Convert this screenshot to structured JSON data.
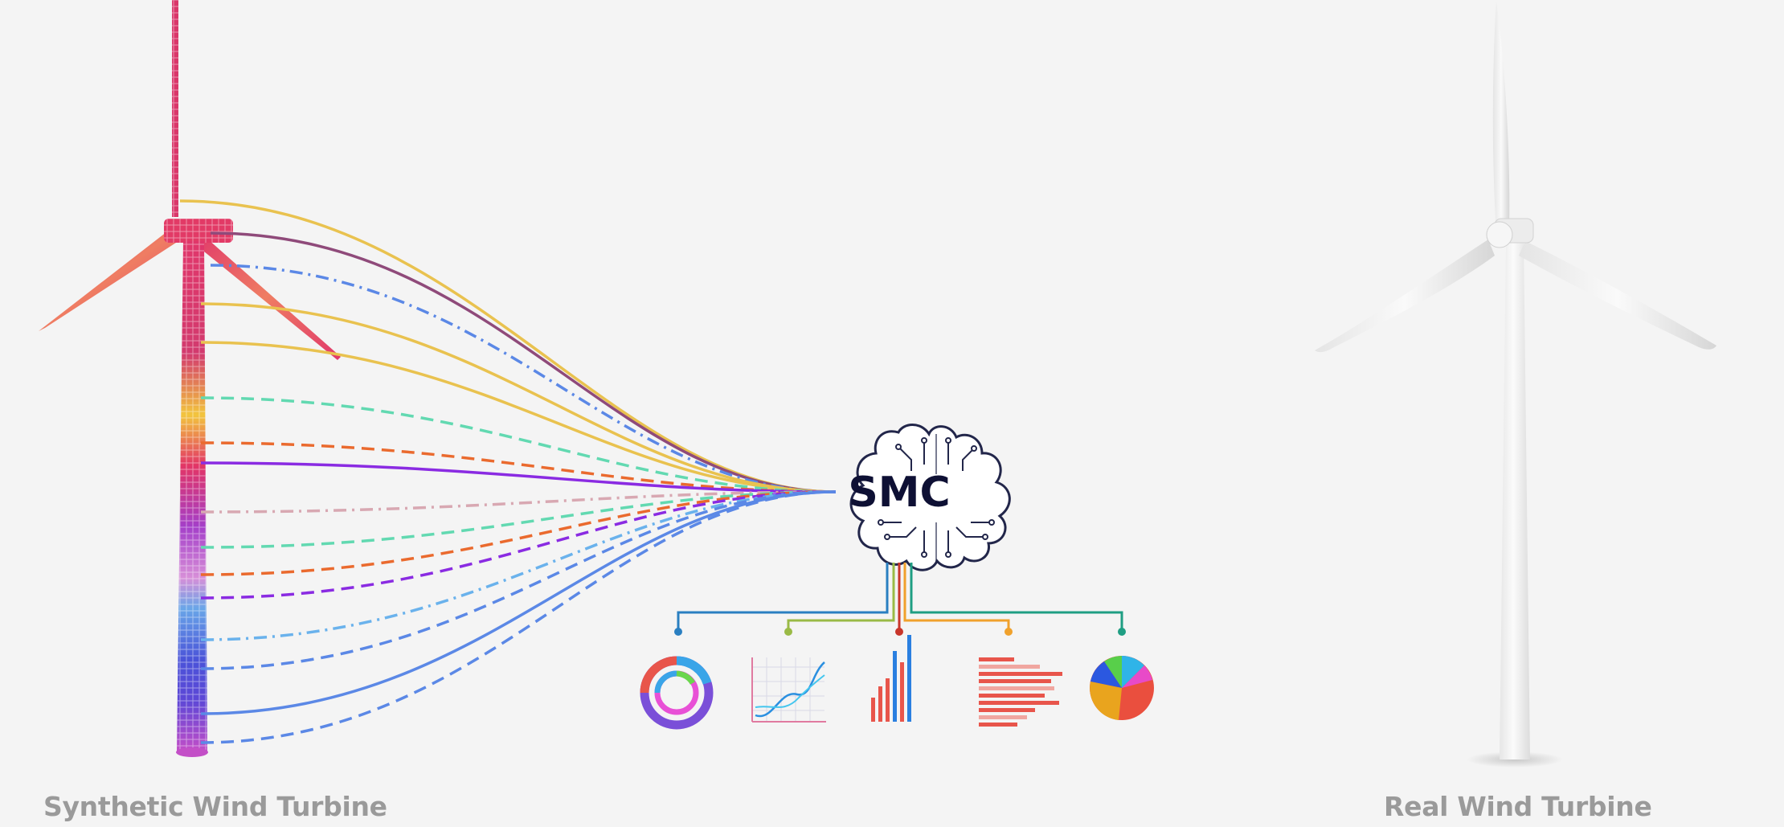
{
  "hub": {
    "label": "SMC"
  },
  "captions": {
    "synthetic": "Synthetic Wind Turbine",
    "real": "Real Wind Turbine"
  },
  "line_styles": [
    {
      "color": "#e9c24f",
      "dash": "solid"
    },
    {
      "color": "#8f4a7a",
      "dash": "solid"
    },
    {
      "color": "#5b88e6",
      "dash": "dashdot"
    },
    {
      "color": "#e9c24f",
      "dash": "solid"
    },
    {
      "color": "#e9c24f",
      "dash": "solid"
    },
    {
      "color": "#62d9b1",
      "dash": "dashed"
    },
    {
      "color": "#ea6a2e",
      "dash": "dashed"
    },
    {
      "color": "#8a2be2",
      "dash": "solid"
    },
    {
      "color": "#d8a8b2",
      "dash": "dashdot"
    },
    {
      "color": "#62d9b1",
      "dash": "dashed"
    },
    {
      "color": "#ea6a2e",
      "dash": "dashed"
    },
    {
      "color": "#8a2be2",
      "dash": "dashed"
    },
    {
      "color": "#6ab2ec",
      "dash": "dashdot"
    },
    {
      "color": "#5b88e6",
      "dash": "dashed"
    },
    {
      "color": "#5b88e6",
      "dash": "solid"
    },
    {
      "color": "#5b88e6",
      "dash": "dashed"
    }
  ],
  "branch_colors": [
    "#2a7fc1",
    "#9aba46",
    "#c8352a",
    "#f0a12c",
    "#1f9e83"
  ],
  "icons": [
    "donut-chart-icon",
    "line-graph-icon",
    "bar-chart-icon",
    "horizontal-bar-chart-icon",
    "pie-chart-icon"
  ]
}
